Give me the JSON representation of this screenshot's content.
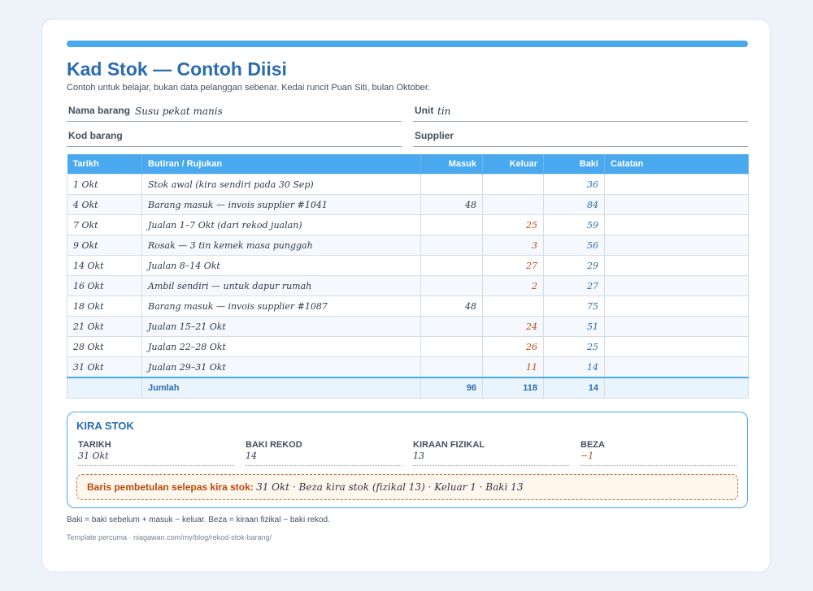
{
  "header": {
    "title": "Kad Stok — Contoh Diisi",
    "subtitle": "Contoh untuk belajar, bukan data pelanggan sebenar. Kedai runcit Puan Siti, bulan Oktober."
  },
  "fields": {
    "item_name_label": "Nama barang",
    "item_name_value": "Susu pekat manis",
    "unit_label": "Unit",
    "unit_value": "tin",
    "item_code_label": "Kod barang",
    "supplier_label": "Supplier"
  },
  "table": {
    "headers": {
      "date": "Tarikh",
      "detail": "Butiran / Rujukan",
      "in": "Masuk",
      "out": "Keluar",
      "balance": "Baki",
      "note": "Catatan"
    },
    "rows": [
      {
        "date": "1 Okt",
        "detail": "Stok awal (kira sendiri pada 30 Sep)",
        "in": "",
        "out": "",
        "balance": "36",
        "note": ""
      },
      {
        "date": "4 Okt",
        "detail": "Barang masuk — invois supplier #1041",
        "in": "48",
        "out": "",
        "balance": "84",
        "note": ""
      },
      {
        "date": "7 Okt",
        "detail": "Jualan 1–7 Okt (dari rekod jualan)",
        "in": "",
        "out": "25",
        "balance": "59",
        "note": ""
      },
      {
        "date": "9 Okt",
        "detail": "Rosak — 3 tin kemek masa punggah",
        "in": "",
        "out": "3",
        "balance": "56",
        "note": ""
      },
      {
        "date": "14 Okt",
        "detail": "Jualan 8–14 Okt",
        "in": "",
        "out": "27",
        "balance": "29",
        "note": ""
      },
      {
        "date": "16 Okt",
        "detail": "Ambil sendiri — untuk dapur rumah",
        "in": "",
        "out": "2",
        "balance": "27",
        "note": ""
      },
      {
        "date": "18 Okt",
        "detail": "Barang masuk — invois supplier #1087",
        "in": "48",
        "out": "",
        "balance": "75",
        "note": ""
      },
      {
        "date": "21 Okt",
        "detail": "Jualan 15–21 Okt",
        "in": "",
        "out": "24",
        "balance": "51",
        "note": ""
      },
      {
        "date": "28 Okt",
        "detail": "Jualan 22–28 Okt",
        "in": "",
        "out": "26",
        "balance": "25",
        "note": ""
      },
      {
        "date": "31 Okt",
        "detail": "Jualan 29–31 Okt",
        "in": "",
        "out": "11",
        "balance": "14",
        "note": ""
      }
    ],
    "total": {
      "label": "Jumlah",
      "in": "96",
      "out": "118",
      "balance": "14"
    }
  },
  "stock_count": {
    "title": "KIRA STOK",
    "date_label": "TARIKH",
    "date_value": "31 Okt",
    "record_label": "BAKI REKOD",
    "record_value": "14",
    "physical_label": "KIRAAN FIZIKAL",
    "physical_value": "13",
    "diff_label": "BEZA",
    "diff_value": "−1",
    "adjust_label": "Baris pembetulan selepas kira stok:",
    "adjust_text": "31 Okt · Beza kira stok (fizikal 13) · Keluar 1 · Baki 13"
  },
  "notes": {
    "formula": "Baki = baki sebelum + masuk − keluar. Beza = kiraan fizikal − baki rekod.",
    "footer": "Template percuma · niagawan.com/my/blog/rekod-stok-barang/"
  },
  "colors": {
    "accent": "#4aa8ee",
    "title": "#2b6cb0",
    "out_values": "#c04a1a"
  }
}
